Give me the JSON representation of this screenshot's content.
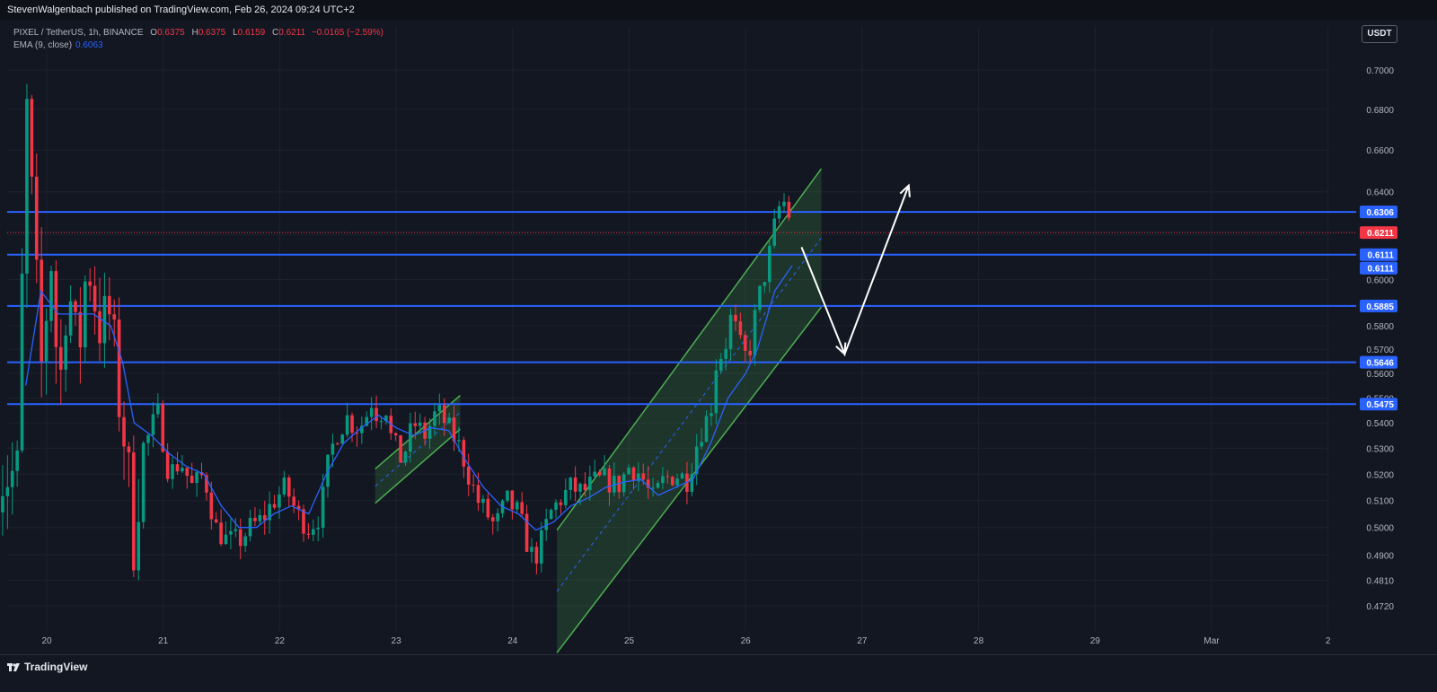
{
  "header": {
    "publish_line": "StevenWalgenbach published on TradingView.com, Feb 26, 2024 09:24 UTC+2"
  },
  "legend": {
    "symbol": "PIXEL / TetherUS, 1h, BINANCE",
    "open_label": "O",
    "open": "0.6375",
    "high_label": "H",
    "high": "0.6375",
    "low_label": "L",
    "low": "0.6159",
    "close_label": "C",
    "close": "0.6211",
    "change": "−0.0165 (−2.59%)",
    "ema_label": "EMA (9, close)",
    "ema_value": "0.6063"
  },
  "currency_button": "USDT",
  "footer": {
    "logo_text": "TradingView",
    "logo_icon": "tradingview-logo-icon"
  },
  "colors": {
    "background": "#131722",
    "grid": "#1e222d",
    "up": "#089981",
    "down": "#f23645",
    "ema": "#2962ff",
    "level_line": "#2962ff",
    "channel": "#4caf50",
    "axis_text": "#b2b5be",
    "arrow": "#ffffff"
  },
  "chart_data": {
    "type": "candlestick",
    "symbol": "PIXEL / TetherUS",
    "interval": "1h",
    "exchange": "BINANCE",
    "y_scale": "log",
    "ylim": [
      0.466,
      0.72
    ],
    "xlim": [
      19.6,
      2.7
    ],
    "x_ticks": [
      "20",
      "21",
      "22",
      "23",
      "24",
      "25",
      "26",
      "27",
      "28",
      "29",
      "Mar",
      "2"
    ],
    "y_ticks": [
      "0.7000",
      "0.6800",
      "0.6600",
      "0.6400",
      "0.6200",
      "0.6000",
      "0.5800",
      "0.5700",
      "0.5600",
      "0.5500",
      "0.5400",
      "0.5300",
      "0.5200",
      "0.5100",
      "0.5000",
      "0.4900",
      "0.4810",
      "0.4720"
    ],
    "last_price": "0.6211",
    "horizontal_levels": [
      "0.6306",
      "0.6111",
      "0.5885",
      "0.5646",
      "0.5475"
    ],
    "extra_price_label": "0.6111",
    "price_path": [
      [
        19.75,
        0.52
      ],
      [
        19.83,
        0.68
      ],
      [
        19.95,
        0.56
      ],
      [
        20.05,
        0.615
      ],
      [
        20.1,
        0.545
      ],
      [
        20.18,
        0.6
      ],
      [
        20.27,
        0.565
      ],
      [
        20.35,
        0.61
      ],
      [
        20.45,
        0.58
      ],
      [
        20.55,
        0.585
      ],
      [
        20.62,
        0.55
      ],
      [
        20.68,
        0.53
      ],
      [
        20.75,
        0.495
      ],
      [
        20.82,
        0.53
      ],
      [
        20.88,
        0.535
      ],
      [
        20.95,
        0.545
      ],
      [
        21.05,
        0.52
      ],
      [
        21.15,
        0.525
      ],
      [
        21.25,
        0.515
      ],
      [
        21.35,
        0.52
      ],
      [
        21.45,
        0.5
      ],
      [
        21.55,
        0.495
      ],
      [
        21.65,
        0.495
      ],
      [
        21.75,
        0.5
      ],
      [
        21.85,
        0.503
      ],
      [
        21.95,
        0.51
      ],
      [
        22.05,
        0.515
      ],
      [
        22.15,
        0.505
      ],
      [
        22.25,
        0.5
      ],
      [
        22.35,
        0.505
      ],
      [
        22.42,
        0.525
      ],
      [
        22.48,
        0.535
      ],
      [
        22.58,
        0.542
      ],
      [
        22.65,
        0.538
      ],
      [
        22.72,
        0.54
      ],
      [
        22.8,
        0.55
      ],
      [
        22.85,
        0.54
      ],
      [
        22.9,
        0.55
      ],
      [
        22.95,
        0.535
      ],
      [
        23.0,
        0.53
      ],
      [
        23.05,
        0.525
      ],
      [
        23.15,
        0.54
      ],
      [
        23.25,
        0.535
      ],
      [
        23.35,
        0.545
      ],
      [
        23.45,
        0.538
      ],
      [
        23.55,
        0.53
      ],
      [
        23.62,
        0.52
      ],
      [
        23.7,
        0.51
      ],
      [
        23.78,
        0.505
      ],
      [
        23.85,
        0.5
      ],
      [
        23.95,
        0.51
      ],
      [
        24.05,
        0.505
      ],
      [
        24.12,
        0.495
      ],
      [
        24.18,
        0.488
      ],
      [
        24.25,
        0.495
      ],
      [
        24.32,
        0.505
      ],
      [
        24.4,
        0.51
      ],
      [
        24.5,
        0.515
      ],
      [
        24.6,
        0.513
      ],
      [
        24.7,
        0.517
      ],
      [
        24.8,
        0.518
      ],
      [
        24.9,
        0.515
      ],
      [
        25.0,
        0.523
      ],
      [
        25.1,
        0.52
      ],
      [
        25.2,
        0.51
      ],
      [
        25.3,
        0.518
      ],
      [
        25.4,
        0.52
      ],
      [
        25.5,
        0.518
      ],
      [
        25.6,
        0.535
      ],
      [
        25.7,
        0.545
      ],
      [
        25.75,
        0.565
      ],
      [
        25.82,
        0.57
      ],
      [
        25.88,
        0.585
      ],
      [
        25.95,
        0.572
      ],
      [
        26.02,
        0.565
      ],
      [
        26.1,
        0.59
      ],
      [
        26.18,
        0.605
      ],
      [
        26.25,
        0.625
      ],
      [
        26.3,
        0.635
      ],
      [
        26.35,
        0.635
      ],
      [
        26.4,
        0.6211
      ]
    ],
    "ema_path": [
      [
        19.82,
        0.555
      ],
      [
        19.95,
        0.595
      ],
      [
        20.1,
        0.585
      ],
      [
        20.25,
        0.585
      ],
      [
        20.4,
        0.585
      ],
      [
        20.55,
        0.58
      ],
      [
        20.65,
        0.565
      ],
      [
        20.75,
        0.54
      ],
      [
        20.9,
        0.535
      ],
      [
        21.05,
        0.528
      ],
      [
        21.2,
        0.523
      ],
      [
        21.35,
        0.52
      ],
      [
        21.5,
        0.508
      ],
      [
        21.65,
        0.5
      ],
      [
        21.8,
        0.5
      ],
      [
        21.95,
        0.505
      ],
      [
        22.1,
        0.508
      ],
      [
        22.25,
        0.505
      ],
      [
        22.4,
        0.52
      ],
      [
        22.55,
        0.532
      ],
      [
        22.7,
        0.538
      ],
      [
        22.85,
        0.543
      ],
      [
        23.0,
        0.538
      ],
      [
        23.15,
        0.535
      ],
      [
        23.3,
        0.538
      ],
      [
        23.45,
        0.537
      ],
      [
        23.6,
        0.525
      ],
      [
        23.75,
        0.515
      ],
      [
        23.9,
        0.508
      ],
      [
        24.05,
        0.505
      ],
      [
        24.2,
        0.499
      ],
      [
        24.35,
        0.502
      ],
      [
        24.5,
        0.508
      ],
      [
        24.65,
        0.511
      ],
      [
        24.8,
        0.515
      ],
      [
        24.95,
        0.517
      ],
      [
        25.1,
        0.518
      ],
      [
        25.25,
        0.512
      ],
      [
        25.4,
        0.515
      ],
      [
        25.55,
        0.518
      ],
      [
        25.7,
        0.532
      ],
      [
        25.85,
        0.55
      ],
      [
        26.0,
        0.56
      ],
      [
        26.1,
        0.57
      ],
      [
        26.25,
        0.595
      ],
      [
        26.4,
        0.6063
      ]
    ],
    "ascending_channel_small": {
      "start_day": 22.82,
      "end_day": 23.55,
      "upper": [
        0.522,
        0.551
      ],
      "lower": [
        0.509,
        0.5375
      ]
    },
    "ascending_channel_large": {
      "start_day": 24.38,
      "end_day": 26.65,
      "upper": [
        0.499,
        0.651
      ],
      "lower": [
        0.456,
        0.588
      ]
    },
    "projection_arrow": [
      [
        26.48,
        0.6145
      ],
      [
        26.85,
        0.568
      ],
      [
        27.4,
        0.643
      ]
    ]
  }
}
